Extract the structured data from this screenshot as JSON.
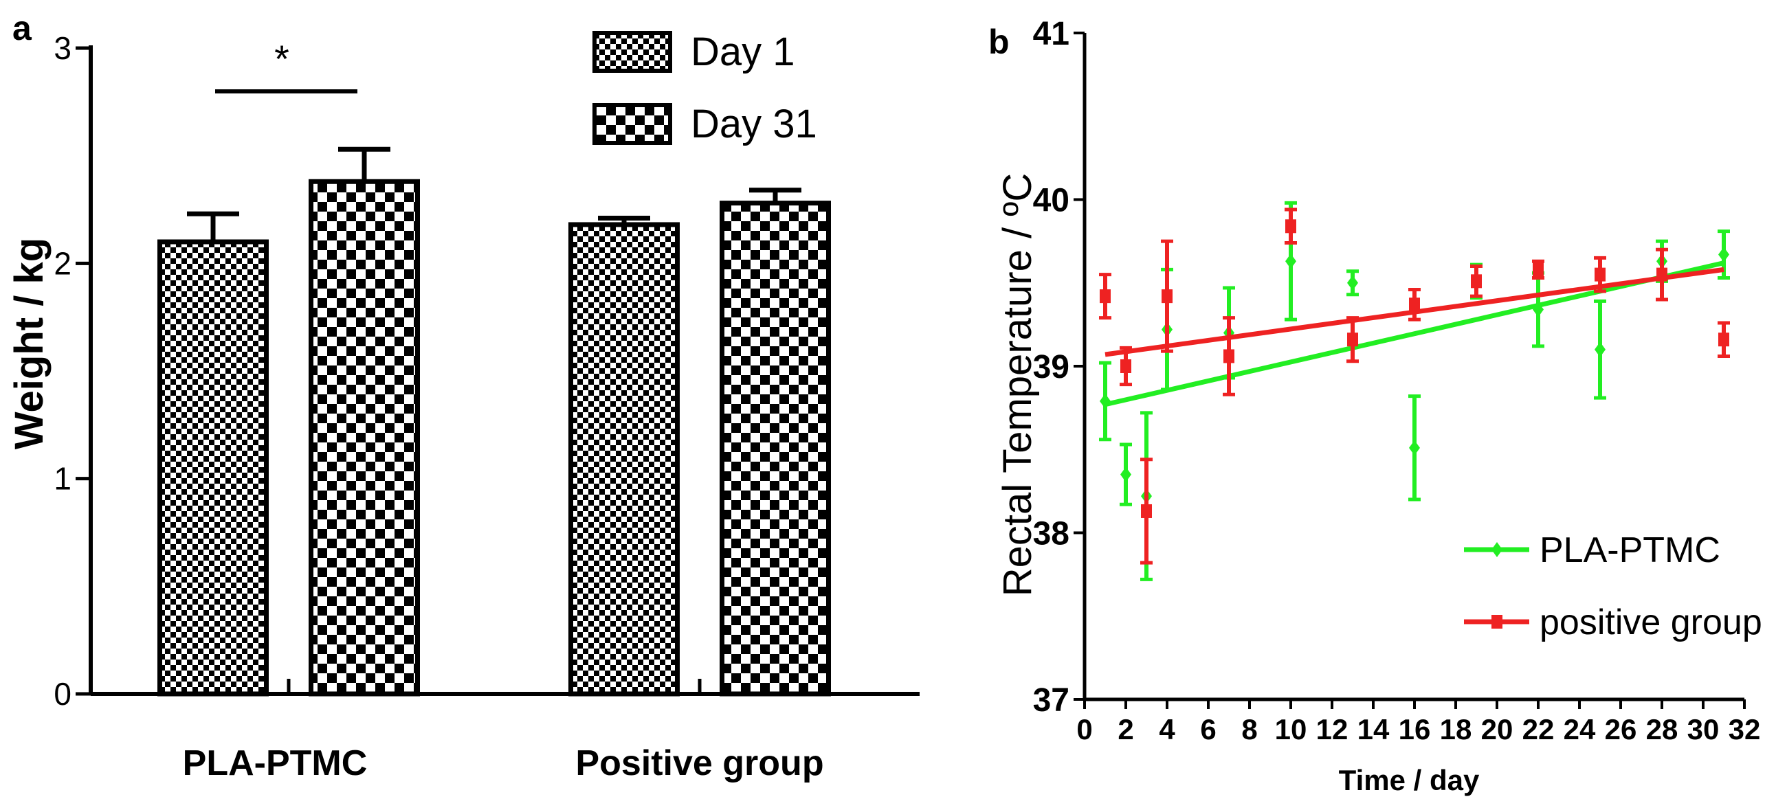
{
  "chart_data": [
    {
      "panel_label": "a",
      "type": "bar",
      "ylabel": "Weight / kg",
      "ylim": [
        0,
        3
      ],
      "yticks": [
        "0",
        "1",
        "2",
        "3"
      ],
      "categories": [
        "PLA-PTMC",
        "Positive group"
      ],
      "series": [
        {
          "name": "Day 1",
          "values": [
            2.1,
            2.18
          ],
          "errors": [
            0.13,
            0.03
          ],
          "pattern": "fine-checker"
        },
        {
          "name": "Day 31",
          "values": [
            2.38,
            2.28
          ],
          "errors": [
            0.15,
            0.06
          ],
          "pattern": "coarse-checker"
        }
      ],
      "significance": {
        "label": "*",
        "between": [
          "Day 1",
          "Day 31"
        ],
        "category": "PLA-PTMC"
      },
      "legend_position": "top-right",
      "grid": false
    },
    {
      "panel_label": "b",
      "type": "line",
      "xlabel": "Time / day",
      "ylabel": "Rectal Temperature / ºC",
      "xlim": [
        0,
        32
      ],
      "ylim": [
        37,
        41
      ],
      "xticks": [
        "0",
        "2",
        "4",
        "6",
        "8",
        "10",
        "12",
        "14",
        "16",
        "18",
        "20",
        "22",
        "24",
        "26",
        "28",
        "30",
        "32"
      ],
      "yticks": [
        "37",
        "38",
        "39",
        "40",
        "41"
      ],
      "legend_position": "bottom-right",
      "grid": false,
      "series": [
        {
          "name": "PLA-PTMC",
          "color": "#22ee22",
          "marker": "diamond",
          "points": [
            {
              "x": 1,
              "y": 38.79,
              "err": 0.23
            },
            {
              "x": 2,
              "y": 38.35,
              "err": 0.18
            },
            {
              "x": 3,
              "y": 38.22,
              "err": 0.5
            },
            {
              "x": 4,
              "y": 39.22,
              "err": 0.36
            },
            {
              "x": 7,
              "y": 39.2,
              "err": 0.27
            },
            {
              "x": 10,
              "y": 39.63,
              "err": 0.35
            },
            {
              "x": 13,
              "y": 39.5,
              "err": 0.07
            },
            {
              "x": 16,
              "y": 38.51,
              "err": 0.31
            },
            {
              "x": 19,
              "y": 39.51,
              "err": 0.1
            },
            {
              "x": 22,
              "y": 39.34,
              "err": 0.22
            },
            {
              "x": 25,
              "y": 39.1,
              "err": 0.29
            },
            {
              "x": 28,
              "y": 39.63,
              "err": 0.12
            },
            {
              "x": 31,
              "y": 39.67,
              "err": 0.14
            }
          ],
          "fit": {
            "x": [
              1,
              31
            ],
            "y": [
              38.77,
              39.62
            ]
          }
        },
        {
          "name": "positive group",
          "color": "#ee2222",
          "marker": "square",
          "points": [
            {
              "x": 1,
              "y": 39.42,
              "err": 0.13
            },
            {
              "x": 2,
              "y": 39.0,
              "err": 0.11
            },
            {
              "x": 3,
              "y": 38.13,
              "err": 0.31
            },
            {
              "x": 4,
              "y": 39.42,
              "err": 0.33
            },
            {
              "x": 7,
              "y": 39.06,
              "err": 0.23
            },
            {
              "x": 10,
              "y": 39.84,
              "err": 0.1
            },
            {
              "x": 13,
              "y": 39.16,
              "err": 0.13
            },
            {
              "x": 16,
              "y": 39.37,
              "err": 0.09
            },
            {
              "x": 19,
              "y": 39.51,
              "err": 0.09
            },
            {
              "x": 22,
              "y": 39.58,
              "err": 0.05
            },
            {
              "x": 25,
              "y": 39.55,
              "err": 0.1
            },
            {
              "x": 28,
              "y": 39.55,
              "err": 0.15
            },
            {
              "x": 31,
              "y": 39.16,
              "err": 0.1
            }
          ],
          "fit": {
            "x": [
              1,
              31
            ],
            "y": [
              39.07,
              39.58
            ]
          }
        }
      ]
    }
  ]
}
